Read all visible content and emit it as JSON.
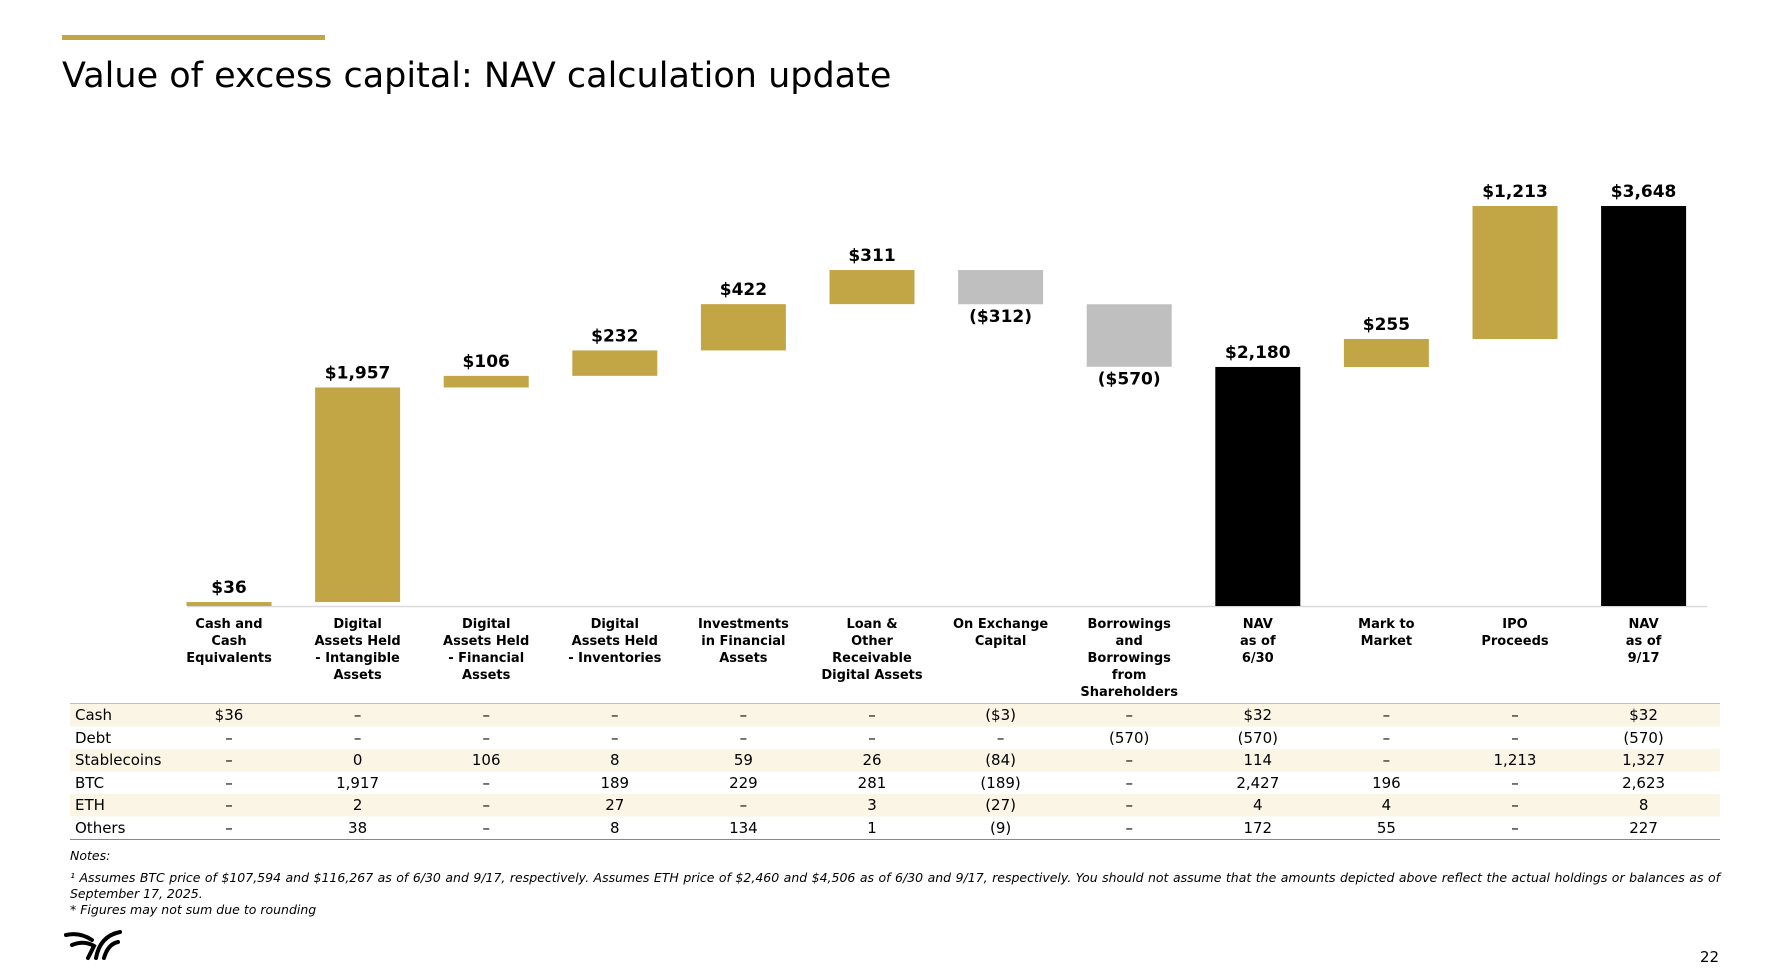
{
  "header": {
    "title": "Value of excess capital: NAV calculation update"
  },
  "chart_data": {
    "type": "waterfall",
    "categories": [
      "Cash and\nCash\nEquivalents",
      "Digital\nAssets Held\n- Intangible\nAssets",
      "Digital\nAssets Held\n- Financial\nAssets",
      "Digital\nAssets Held\n- Inventories",
      "Investments\nin Financial\nAssets",
      "Loan &\nOther\nReceivable\nDigital Assets",
      "On Exchange\nCapital",
      "Borrowings\nand\nBorrowings\nfrom Shareholders",
      "NAV\nas of\n6/30",
      "Mark to\nMarket",
      "IPO\nProceeds",
      "NAV\nas of\n9/17"
    ],
    "values": [
      36,
      1957,
      106,
      232,
      422,
      311,
      -312,
      -570,
      2180,
      255,
      1213,
      3648
    ],
    "value_labels": [
      "$36",
      "$1,957",
      "$106",
      "$232",
      "$422",
      "$311",
      "($312)",
      "($570)",
      "$2,180",
      "$255",
      "$1,213",
      "$3,648"
    ],
    "measure": [
      "relative",
      "relative",
      "relative",
      "relative",
      "relative",
      "relative",
      "relative",
      "relative",
      "total",
      "relative",
      "relative",
      "total"
    ],
    "colors": [
      "#c2a646",
      "#c2a646",
      "#c2a646",
      "#c2a646",
      "#c2a646",
      "#c2a646",
      "#bfbfbf",
      "#bfbfbf",
      "#000000",
      "#c2a646",
      "#c2a646",
      "#000000"
    ]
  },
  "table": {
    "rows": [
      {
        "label": "Cash",
        "cells": [
          "$36",
          "–",
          "–",
          "–",
          "–",
          "–",
          "($3)",
          "–",
          "$32",
          "–",
          "–",
          "$32"
        ]
      },
      {
        "label": "Debt",
        "cells": [
          "–",
          "–",
          "–",
          "–",
          "–",
          "–",
          "–",
          "(570)",
          "(570)",
          "–",
          "–",
          "(570)"
        ]
      },
      {
        "label": "Stablecoins",
        "cells": [
          "–",
          "0",
          "106",
          "8",
          "59",
          "26",
          "(84)",
          "–",
          "114",
          "–",
          "1,213",
          "1,327"
        ]
      },
      {
        "label": "BTC",
        "cells": [
          "–",
          "1,917",
          "–",
          "189",
          "229",
          "281",
          "(189)",
          "–",
          "2,427",
          "196",
          "–",
          "2,623"
        ]
      },
      {
        "label": "ETH",
        "cells": [
          "–",
          "2",
          "–",
          "27",
          "–",
          "3",
          "(27)",
          "–",
          "4",
          "4",
          "–",
          "8"
        ]
      },
      {
        "label": "Others",
        "cells": [
          "–",
          "38",
          "–",
          "8",
          "134",
          "1",
          "(9)",
          "–",
          "172",
          "55",
          "–",
          "227"
        ]
      }
    ]
  },
  "notes": {
    "heading": "Notes:",
    "footnote": "¹ Assumes BTC price of $107,594 and $116,267 as of 6/30 and 9/17, respectively. Assumes ETH price of $2,460 and $4,506 as of 6/30 and 9/17, respectively. You should not assume that the amounts depicted above reflect the actual holdings or balances as of September 17, 2025.",
    "rounding": "* Figures may not sum due to rounding"
  },
  "page_number": "22"
}
